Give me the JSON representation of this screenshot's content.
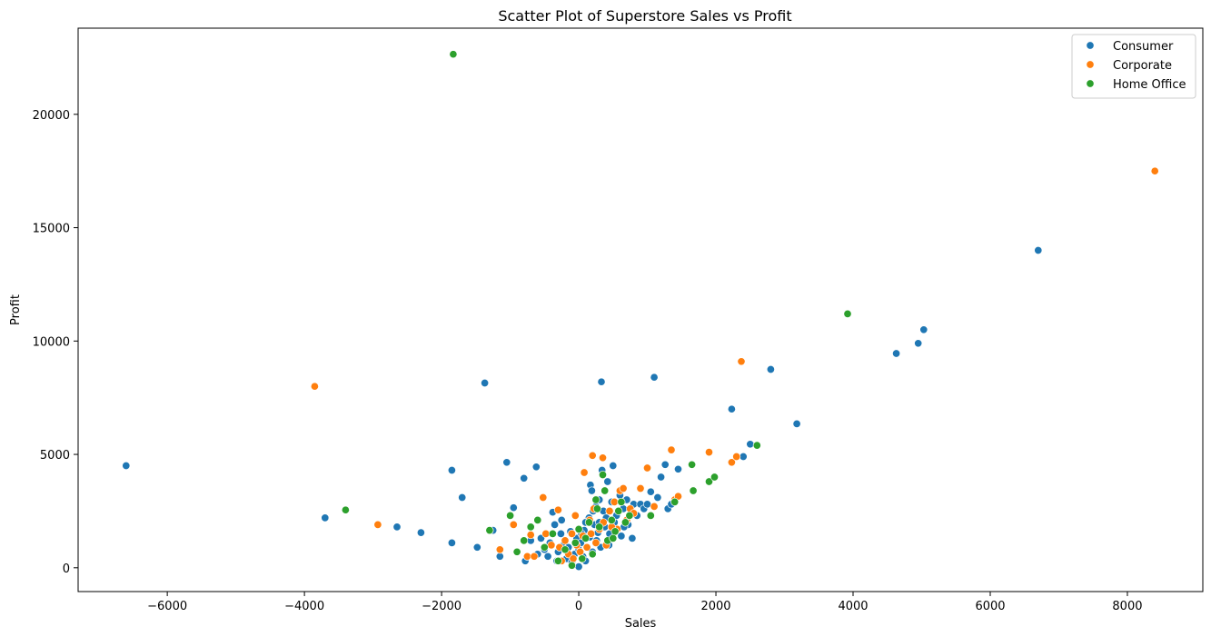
{
  "chart_data": {
    "type": "scatter",
    "title": "Scatter Plot of Superstore Sales vs Profit",
    "xlabel": "Sales",
    "ylabel": "Profit",
    "xlim": [
      -7300,
      9100
    ],
    "ylim": [
      -1050,
      23800
    ],
    "xticks": [
      -6000,
      -4000,
      -2000,
      0,
      2000,
      4000,
      6000,
      8000
    ],
    "yticks": [
      0,
      5000,
      10000,
      15000,
      20000
    ],
    "grid": false,
    "legend_position": "top-right",
    "series": [
      {
        "name": "Consumer",
        "color": "#1f77b4",
        "points": [
          [
            -6600,
            4500
          ],
          [
            -3700,
            2200
          ],
          [
            -2650,
            1800
          ],
          [
            -2300,
            1550
          ],
          [
            -1850,
            4300
          ],
          [
            -1850,
            1100
          ],
          [
            -1700,
            3100
          ],
          [
            -1480,
            900
          ],
          [
            -1370,
            8150
          ],
          [
            -1250,
            1650
          ],
          [
            -1050,
            4650
          ],
          [
            -950,
            2650
          ],
          [
            -800,
            3950
          ],
          [
            -780,
            300
          ],
          [
            -620,
            4450
          ],
          [
            -550,
            1300
          ],
          [
            -500,
            800
          ],
          [
            -450,
            500
          ],
          [
            -420,
            1100
          ],
          [
            -380,
            2450
          ],
          [
            -350,
            1900
          ],
          [
            -320,
            300
          ],
          [
            -300,
            700
          ],
          [
            -260,
            1500
          ],
          [
            -220,
            1000
          ],
          [
            -180,
            400
          ],
          [
            -150,
            900
          ],
          [
            -100,
            250
          ],
          [
            -60,
            600
          ],
          [
            -30,
            1300
          ],
          [
            0,
            800
          ],
          [
            0,
            50
          ],
          [
            30,
            1100
          ],
          [
            60,
            500
          ],
          [
            80,
            1650
          ],
          [
            100,
            300
          ],
          [
            120,
            900
          ],
          [
            150,
            2200
          ],
          [
            160,
            1350
          ],
          [
            170,
            3650
          ],
          [
            190,
            3400
          ],
          [
            200,
            700
          ],
          [
            230,
            1900
          ],
          [
            250,
            2700
          ],
          [
            260,
            1200
          ],
          [
            280,
            1550
          ],
          [
            300,
            2000
          ],
          [
            320,
            900
          ],
          [
            330,
            8200
          ],
          [
            340,
            4300
          ],
          [
            360,
            2500
          ],
          [
            380,
            1800
          ],
          [
            400,
            2200
          ],
          [
            420,
            3800
          ],
          [
            450,
            1500
          ],
          [
            480,
            2900
          ],
          [
            500,
            4500
          ],
          [
            520,
            2000
          ],
          [
            550,
            1700
          ],
          [
            580,
            2500
          ],
          [
            600,
            3200
          ],
          [
            620,
            1400
          ],
          [
            650,
            2600
          ],
          [
            700,
            3000
          ],
          [
            720,
            1900
          ],
          [
            760,
            2400
          ],
          [
            800,
            2800
          ],
          [
            850,
            2300
          ],
          [
            900,
            2800
          ],
          [
            950,
            2600
          ],
          [
            1000,
            2800
          ],
          [
            1050,
            3350
          ],
          [
            1100,
            8400
          ],
          [
            1150,
            3100
          ],
          [
            1200,
            4000
          ],
          [
            1260,
            4550
          ],
          [
            1300,
            2600
          ],
          [
            1350,
            2800
          ],
          [
            1400,
            3000
          ],
          [
            1450,
            4350
          ],
          [
            2230,
            7000
          ],
          [
            2400,
            4900
          ],
          [
            2500,
            5450
          ],
          [
            2800,
            8750
          ],
          [
            3180,
            6350
          ],
          [
            4630,
            9450
          ],
          [
            4950,
            9900
          ],
          [
            5030,
            10500
          ],
          [
            6700,
            14000
          ],
          [
            -1150,
            500
          ],
          [
            -700,
            1200
          ],
          [
            -600,
            600
          ],
          [
            -250,
            2100
          ],
          [
            40,
            1500
          ],
          [
            210,
            2500
          ],
          [
            440,
            1000
          ],
          [
            660,
            1800
          ],
          [
            780,
            1300
          ],
          [
            -120,
            1600
          ],
          [
            100,
            2000
          ],
          [
            300,
            3000
          ],
          [
            550,
            2300
          ]
        ]
      },
      {
        "name": "Corporate",
        "color": "#ff7f0e",
        "points": [
          [
            -3850,
            8000
          ],
          [
            -2930,
            1900
          ],
          [
            -1150,
            800
          ],
          [
            -950,
            1900
          ],
          [
            -750,
            500
          ],
          [
            -700,
            1450
          ],
          [
            -650,
            500
          ],
          [
            -520,
            3100
          ],
          [
            -480,
            1500
          ],
          [
            -300,
            2550
          ],
          [
            -280,
            900
          ],
          [
            -250,
            300
          ],
          [
            -200,
            1200
          ],
          [
            -150,
            600
          ],
          [
            -100,
            1500
          ],
          [
            -80,
            400
          ],
          [
            -30,
            1000
          ],
          [
            20,
            700
          ],
          [
            60,
            1400
          ],
          [
            80,
            4200
          ],
          [
            120,
            900
          ],
          [
            160,
            2100
          ],
          [
            200,
            4950
          ],
          [
            220,
            2600
          ],
          [
            250,
            1100
          ],
          [
            300,
            1700
          ],
          [
            350,
            4850
          ],
          [
            360,
            2000
          ],
          [
            400,
            1000
          ],
          [
            450,
            2500
          ],
          [
            520,
            2900
          ],
          [
            560,
            1700
          ],
          [
            600,
            3400
          ],
          [
            650,
            3500
          ],
          [
            700,
            2100
          ],
          [
            750,
            2600
          ],
          [
            800,
            2400
          ],
          [
            900,
            3500
          ],
          [
            1000,
            4400
          ],
          [
            1100,
            2700
          ],
          [
            1350,
            5200
          ],
          [
            1400,
            3000
          ],
          [
            1450,
            3150
          ],
          [
            1900,
            5100
          ],
          [
            2230,
            4650
          ],
          [
            2300,
            4900
          ],
          [
            2370,
            9100
          ],
          [
            8400,
            17500
          ],
          [
            -400,
            1000
          ],
          [
            -50,
            2300
          ],
          [
            180,
            1500
          ],
          [
            480,
            1800
          ]
        ]
      },
      {
        "name": "Home Office",
        "color": "#2ca02c",
        "points": [
          [
            -3400,
            2550
          ],
          [
            -1830,
            22650
          ],
          [
            -1300,
            1650
          ],
          [
            -1000,
            2300
          ],
          [
            -900,
            700
          ],
          [
            -800,
            1200
          ],
          [
            -600,
            2100
          ],
          [
            -500,
            900
          ],
          [
            -380,
            1500
          ],
          [
            -300,
            300
          ],
          [
            -200,
            800
          ],
          [
            -100,
            100
          ],
          [
            -50,
            1100
          ],
          [
            50,
            400
          ],
          [
            100,
            1300
          ],
          [
            150,
            2000
          ],
          [
            200,
            600
          ],
          [
            250,
            3000
          ],
          [
            300,
            1800
          ],
          [
            350,
            4100
          ],
          [
            380,
            3400
          ],
          [
            420,
            1200
          ],
          [
            480,
            2100
          ],
          [
            530,
            1600
          ],
          [
            580,
            2500
          ],
          [
            620,
            2900
          ],
          [
            680,
            2000
          ],
          [
            740,
            2300
          ],
          [
            1050,
            2300
          ],
          [
            1400,
            2900
          ],
          [
            1650,
            4550
          ],
          [
            1670,
            3400
          ],
          [
            1900,
            3800
          ],
          [
            1980,
            4000
          ],
          [
            2600,
            5400
          ],
          [
            3920,
            11200
          ],
          [
            -700,
            1800
          ],
          [
            0,
            1700
          ],
          [
            270,
            2600
          ],
          [
            500,
            1300
          ]
        ]
      }
    ]
  }
}
